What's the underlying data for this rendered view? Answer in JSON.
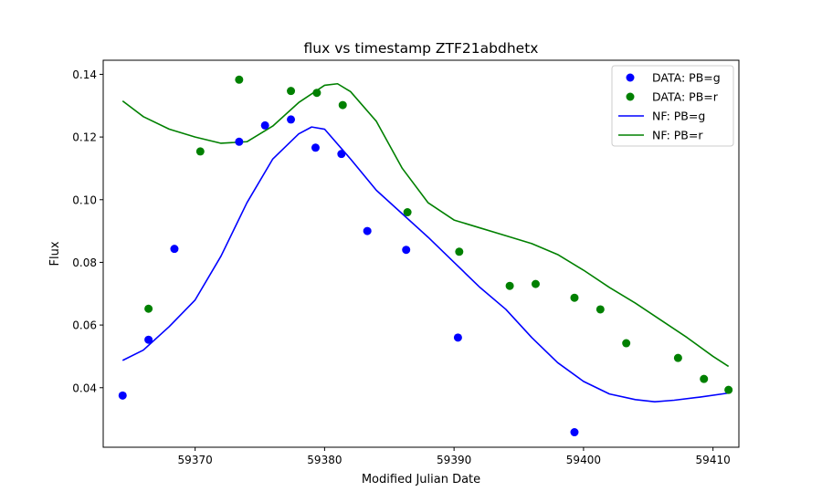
{
  "chart_data": {
    "type": "scatter",
    "title": "flux vs timestamp ZTF21abdhetx",
    "xlabel": "Modified Julian Date",
    "ylabel": "Flux",
    "xlim": [
      59362.9,
      59412.0
    ],
    "ylim": [
      0.021,
      0.1445
    ],
    "xticks": [
      59370,
      59380,
      59390,
      59400,
      59410
    ],
    "yticks": [
      0.04,
      0.06,
      0.08,
      0.1,
      0.12,
      0.14
    ],
    "xtick_labels": [
      "59370",
      "59380",
      "59390",
      "59400",
      "59410"
    ],
    "ytick_labels": [
      "0.04",
      "0.06",
      "0.08",
      "0.10",
      "0.12",
      "0.14"
    ],
    "grid": false,
    "legend_position": "top-right",
    "legend": [
      "DATA: PB=g",
      "DATA: PB=r",
      "NF: PB=g",
      "NF: PB=r"
    ],
    "series": [
      {
        "name": "DATA: PB=g",
        "kind": "scatter",
        "color": "#0000ff",
        "x": [
          59364.4,
          59366.4,
          59368.4,
          59373.4,
          59375.4,
          59377.4,
          59379.3,
          59381.3,
          59383.3,
          59386.3,
          59390.3,
          59399.3
        ],
        "y": [
          0.0375,
          0.0553,
          0.0843,
          0.1185,
          0.1237,
          0.1256,
          0.1166,
          0.1146,
          0.09,
          0.084,
          0.056,
          0.0258
        ]
      },
      {
        "name": "DATA: PB=r",
        "kind": "scatter",
        "color": "#008000",
        "x": [
          59366.4,
          59370.4,
          59373.4,
          59377.4,
          59379.4,
          59381.4,
          59386.4,
          59390.4,
          59394.3,
          59396.3,
          59399.3,
          59401.3,
          59403.3,
          59407.3,
          59409.3,
          59411.2
        ],
        "y": [
          0.0652,
          0.1154,
          0.1383,
          0.1347,
          0.1341,
          0.1302,
          0.096,
          0.0834,
          0.0725,
          0.0731,
          0.0687,
          0.065,
          0.0542,
          0.0495,
          0.0428,
          0.0393
        ]
      },
      {
        "name": "NF: PB=g",
        "kind": "line",
        "color": "#0000ff",
        "x": [
          59364.4,
          59366.0,
          59368.0,
          59370.0,
          59372.0,
          59374.0,
          59376.0,
          59378.0,
          59379.0,
          59380.0,
          59382.0,
          59384.0,
          59386.0,
          59388.0,
          59390.0,
          59392.0,
          59394.0,
          59396.0,
          59398.0,
          59400.0,
          59402.0,
          59404.0,
          59405.5,
          59407.0,
          59409.0,
          59411.2
        ],
        "y": [
          0.0487,
          0.052,
          0.0595,
          0.068,
          0.082,
          0.099,
          0.113,
          0.121,
          0.1232,
          0.1225,
          0.113,
          0.103,
          0.0955,
          0.088,
          0.08,
          0.072,
          0.065,
          0.056,
          0.048,
          0.042,
          0.038,
          0.0362,
          0.0355,
          0.036,
          0.037,
          0.0383
        ]
      },
      {
        "name": "NF: PB=r",
        "kind": "line",
        "color": "#008000",
        "x": [
          59364.4,
          59366.0,
          59368.0,
          59370.0,
          59372.0,
          59374.0,
          59376.0,
          59378.0,
          59380.0,
          59381.0,
          59382.0,
          59384.0,
          59386.0,
          59388.0,
          59390.0,
          59392.0,
          59394.0,
          59396.0,
          59398.0,
          59400.0,
          59402.0,
          59404.0,
          59406.0,
          59408.0,
          59410.0,
          59411.2
        ],
        "y": [
          0.1315,
          0.1265,
          0.1225,
          0.12,
          0.118,
          0.1185,
          0.1235,
          0.131,
          0.1365,
          0.137,
          0.1345,
          0.125,
          0.11,
          0.099,
          0.0935,
          0.091,
          0.0885,
          0.086,
          0.0825,
          0.0775,
          0.072,
          0.067,
          0.0615,
          0.056,
          0.05,
          0.0468
        ]
      }
    ]
  }
}
